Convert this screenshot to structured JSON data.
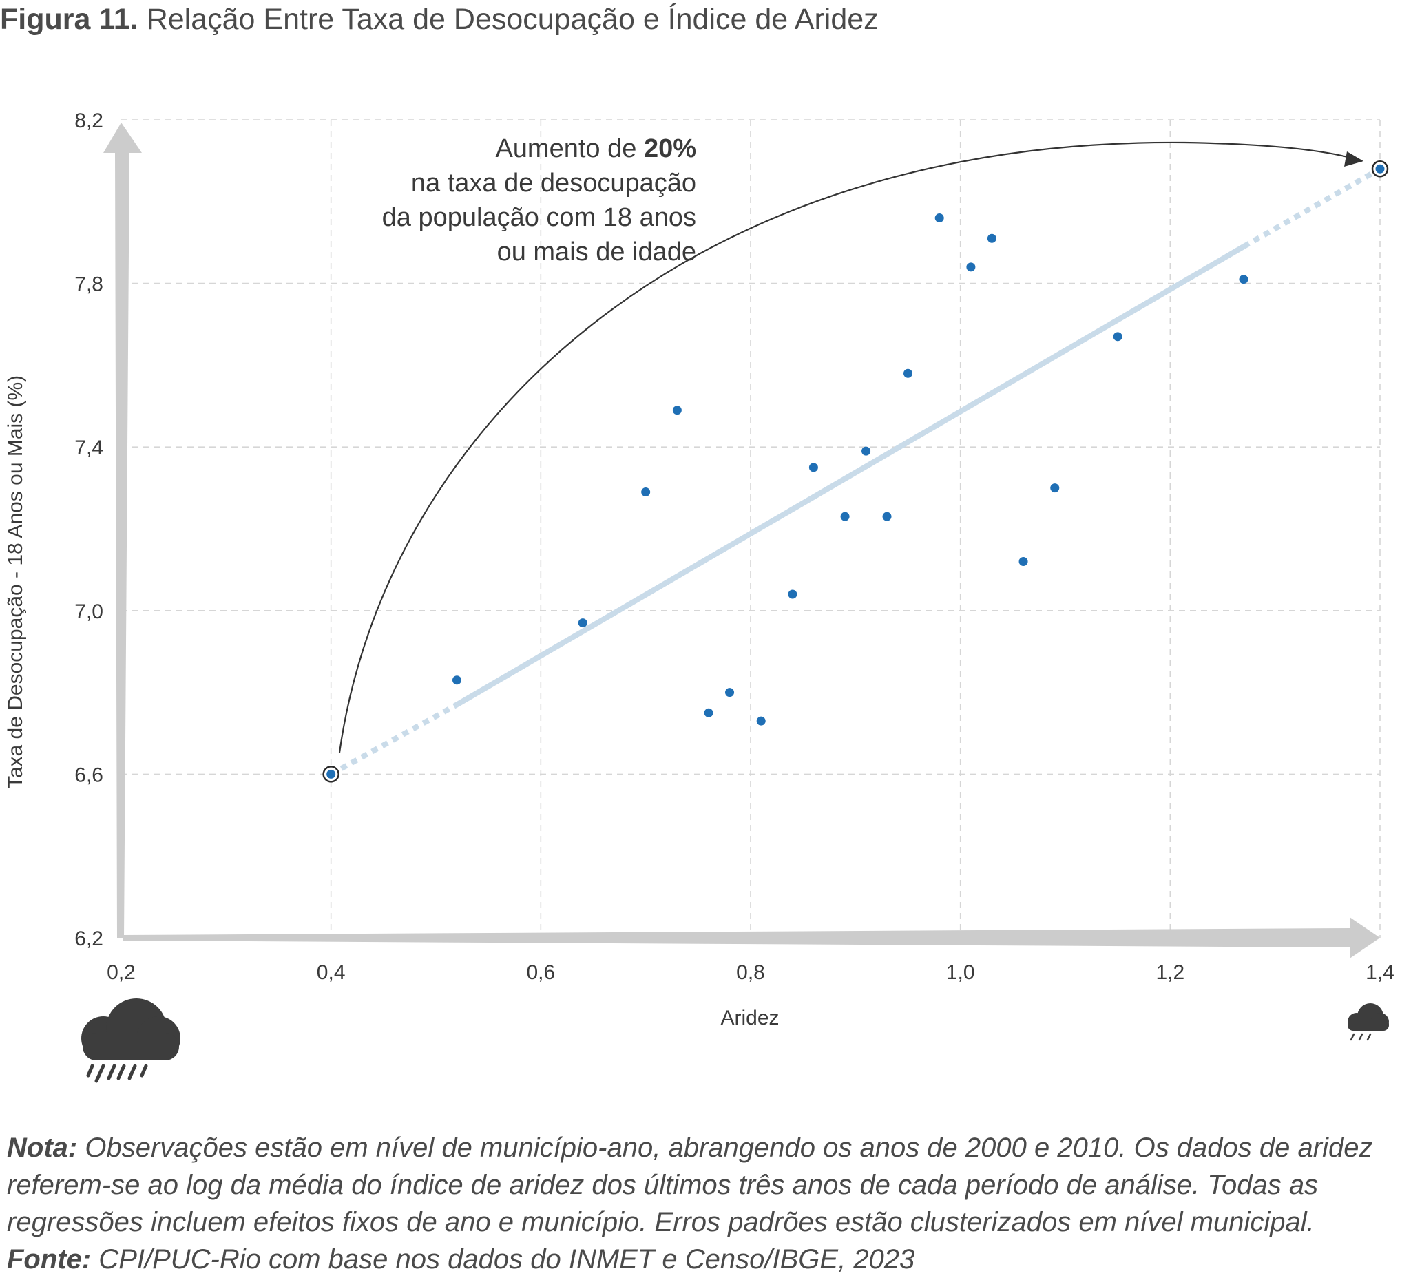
{
  "figure": {
    "label": "Figura 11.",
    "title": "Relação Entre Taxa de Desocupação e Índice de Aridez"
  },
  "chart_data": {
    "type": "scatter",
    "xlabel": "Aridez",
    "ylabel": "Taxa de Desocupação - 18 Anos ou Mais (%)",
    "xlim": [
      0.2,
      1.4
    ],
    "ylim": [
      6.2,
      8.2
    ],
    "x_ticks": [
      "0,2",
      "0,4",
      "0,6",
      "0,8",
      "1,0",
      "1,2",
      "1,4"
    ],
    "y_ticks": [
      "6,2",
      "6,6",
      "7,0",
      "7,4",
      "7,8",
      "8,2"
    ],
    "x_tick_values": [
      0.2,
      0.4,
      0.6,
      0.8,
      1.0,
      1.2,
      1.4
    ],
    "y_tick_values": [
      6.2,
      6.6,
      7.0,
      7.4,
      7.8,
      8.2
    ],
    "grid": true,
    "point_color": "#1f6fb5",
    "trend_color": "#c9dbe9",
    "points": [
      {
        "x": 0.52,
        "y": 6.83
      },
      {
        "x": 0.64,
        "y": 6.97
      },
      {
        "x": 0.7,
        "y": 7.29
      },
      {
        "x": 0.73,
        "y": 7.49
      },
      {
        "x": 0.76,
        "y": 6.75
      },
      {
        "x": 0.78,
        "y": 6.8
      },
      {
        "x": 0.81,
        "y": 6.73
      },
      {
        "x": 0.84,
        "y": 7.04
      },
      {
        "x": 0.86,
        "y": 7.35
      },
      {
        "x": 0.89,
        "y": 7.23
      },
      {
        "x": 0.91,
        "y": 7.39
      },
      {
        "x": 0.93,
        "y": 7.23
      },
      {
        "x": 0.95,
        "y": 7.58
      },
      {
        "x": 0.98,
        "y": 7.96
      },
      {
        "x": 1.01,
        "y": 7.84
      },
      {
        "x": 1.03,
        "y": 7.91
      },
      {
        "x": 1.06,
        "y": 7.12
      },
      {
        "x": 1.09,
        "y": 7.3
      },
      {
        "x": 1.15,
        "y": 7.67
      },
      {
        "x": 1.27,
        "y": 7.81
      }
    ],
    "trend": {
      "start": {
        "x": 0.4,
        "y": 6.6
      },
      "solid_start": {
        "x": 0.52,
        "y": 6.77
      },
      "solid_end": {
        "x": 1.27,
        "y": 7.89
      },
      "end": {
        "x": 1.4,
        "y": 8.08
      }
    },
    "annotation": {
      "line1_prefix": "Aumento de ",
      "line1_bold": "20%",
      "line2": "na taxa de desocupação",
      "line3": "da população com 18 anos",
      "line4": "ou mais de idade"
    }
  },
  "icons": {
    "left": "rain-cloud-icon",
    "right": "small-rain-cloud-icon"
  },
  "footer": {
    "nota_label": "Nota:",
    "nota_text": " Observações estão em nível de município-ano, abrangendo os anos de 2000 e 2010. Os dados de aridez referem-se ao log da média do índice de aridez dos últimos três anos de cada período de análise. Todas as regressões incluem efeitos fixos de ano e município. Erros padrões estão clusterizados em nível municipal.",
    "fonte_label": "Fonte:",
    "fonte_text": " CPI/PUC-Rio com base nos dados do INMET e Censo/IBGE, 2023"
  }
}
